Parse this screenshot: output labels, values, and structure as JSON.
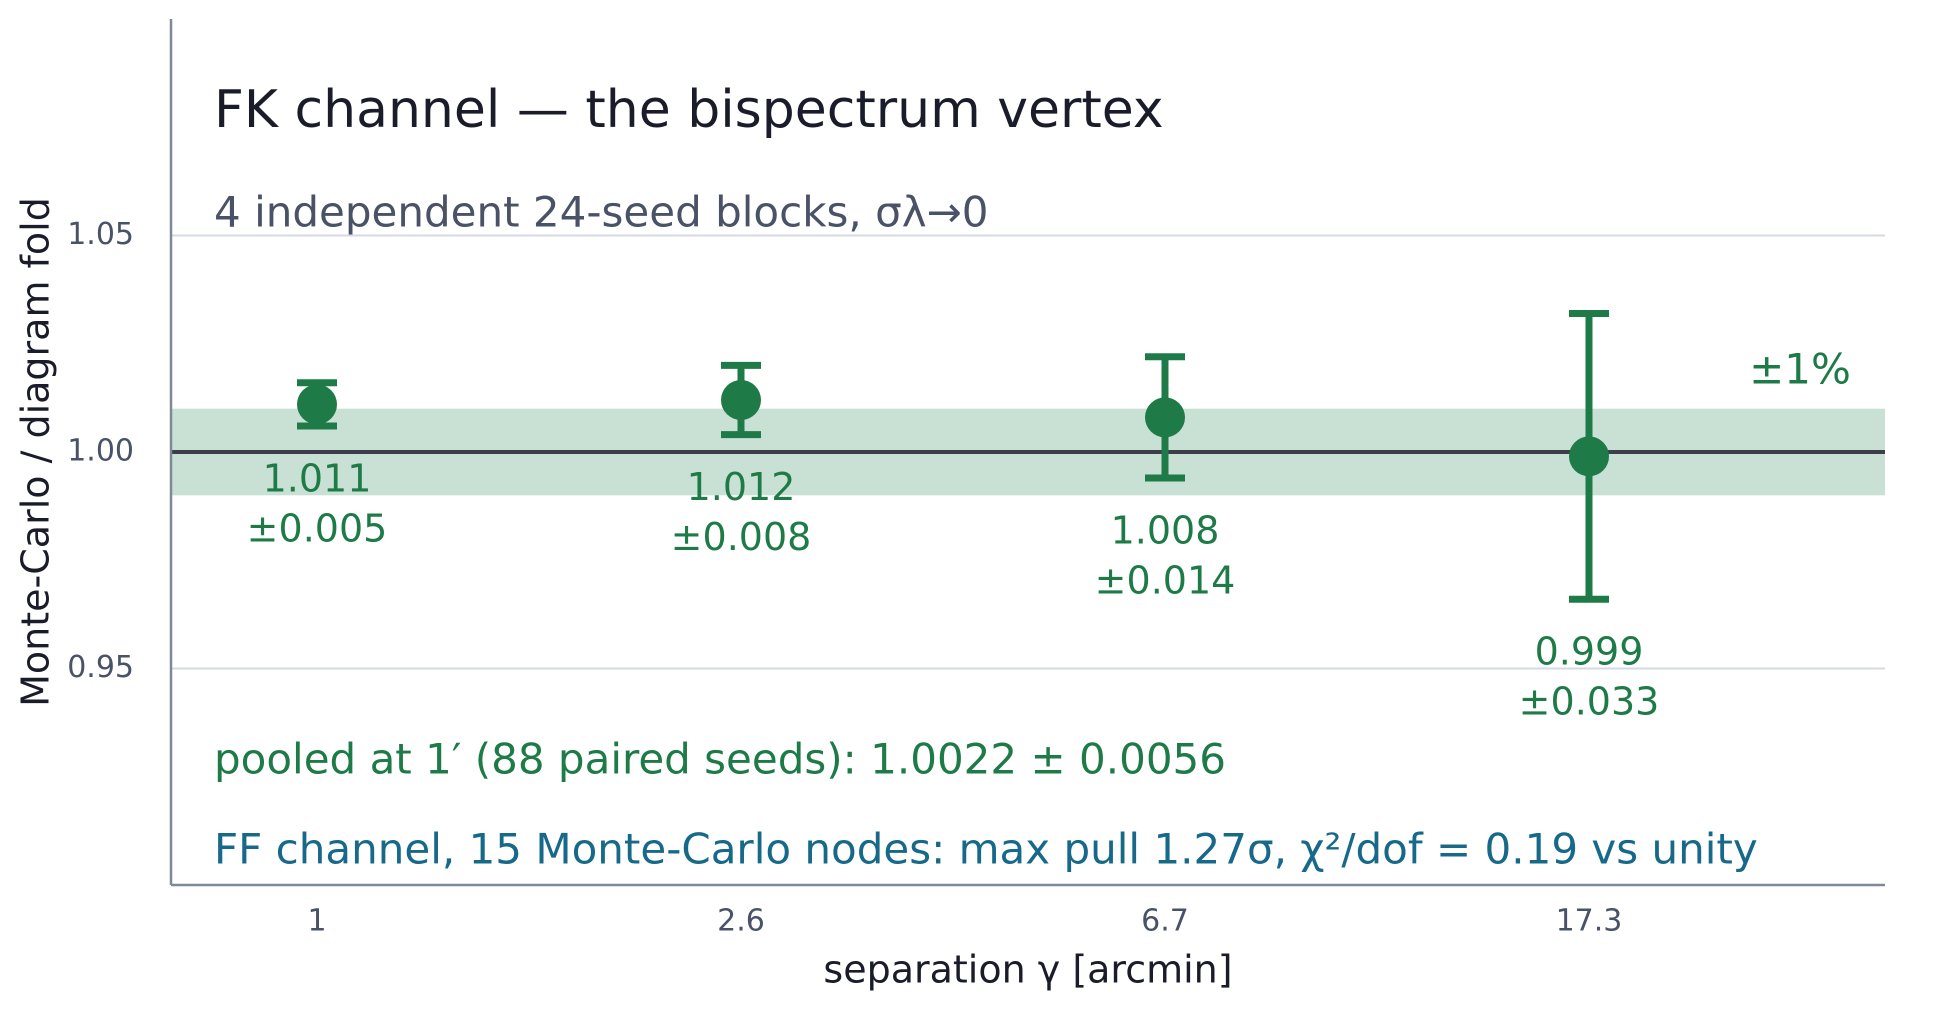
{
  "chart_data": {
    "type": "errorbar",
    "title": "FK channel  —  the bispectrum vertex",
    "subtitle": "4 independent 24-seed blocks, σλ→0",
    "x_label": "separation  γ  [arcmin]",
    "y_label": "Monte-Carlo / diagram fold",
    "categories": [
      "1",
      "2.6",
      "6.7",
      "17.3"
    ],
    "values": [
      1.011,
      1.012,
      1.008,
      0.999
    ],
    "errors": [
      0.005,
      0.008,
      0.014,
      0.033
    ],
    "error_labels": [
      "±0.005",
      "±0.008",
      "±0.014",
      "±0.033"
    ],
    "color": "#1e7b47",
    "reference_line": 1,
    "band": [
      0.99,
      1.01
    ],
    "band_label": "±1%",
    "annotations": [
      "pooled at 1′ (88 paired seeds):  1.0022 ± 0.0056",
      "FF channel, 15 Monte-Carlo nodes:  max pull 1.27σ,  χ²/dof = 0.19 vs unity"
    ],
    "ylim": [
      0.9,
      1.1
    ],
    "yticks": [
      0.95,
      {
        "value": 1,
        "label": "1.00"
      },
      1.05
    ],
    "grid": true
  }
}
